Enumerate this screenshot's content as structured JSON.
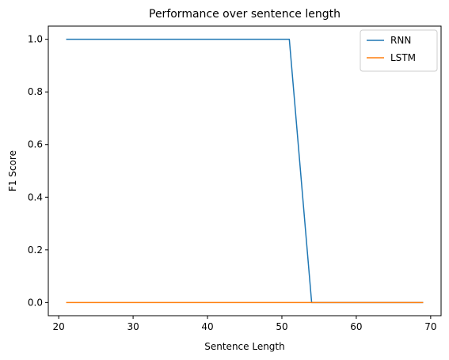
{
  "chart_data": {
    "type": "line",
    "title": "Performance over sentence length",
    "xlabel": "Sentence Length",
    "ylabel": "F1 Score",
    "xlim": [
      18.6,
      71.4
    ],
    "ylim": [
      -0.05,
      1.05
    ],
    "x_ticks": [
      20,
      30,
      40,
      50,
      60,
      70
    ],
    "y_ticks": [
      0.0,
      0.2,
      0.4,
      0.6,
      0.8,
      1.0
    ],
    "x_tick_labels": [
      "20",
      "30",
      "40",
      "50",
      "60",
      "70"
    ],
    "y_tick_labels": [
      "0.0",
      "0.2",
      "0.4",
      "0.6",
      "0.8",
      "1.0"
    ],
    "grid": false,
    "legend": "top-right",
    "series": [
      {
        "name": "RNN",
        "color": "#1f77b4",
        "points": [
          [
            21,
            1.0
          ],
          [
            51,
            1.0
          ],
          [
            54,
            0.0
          ],
          [
            69,
            0.0
          ]
        ]
      },
      {
        "name": "LSTM",
        "color": "#ff7f0e",
        "points": [
          [
            21,
            0.0
          ],
          [
            69,
            0.0
          ]
        ]
      }
    ]
  }
}
